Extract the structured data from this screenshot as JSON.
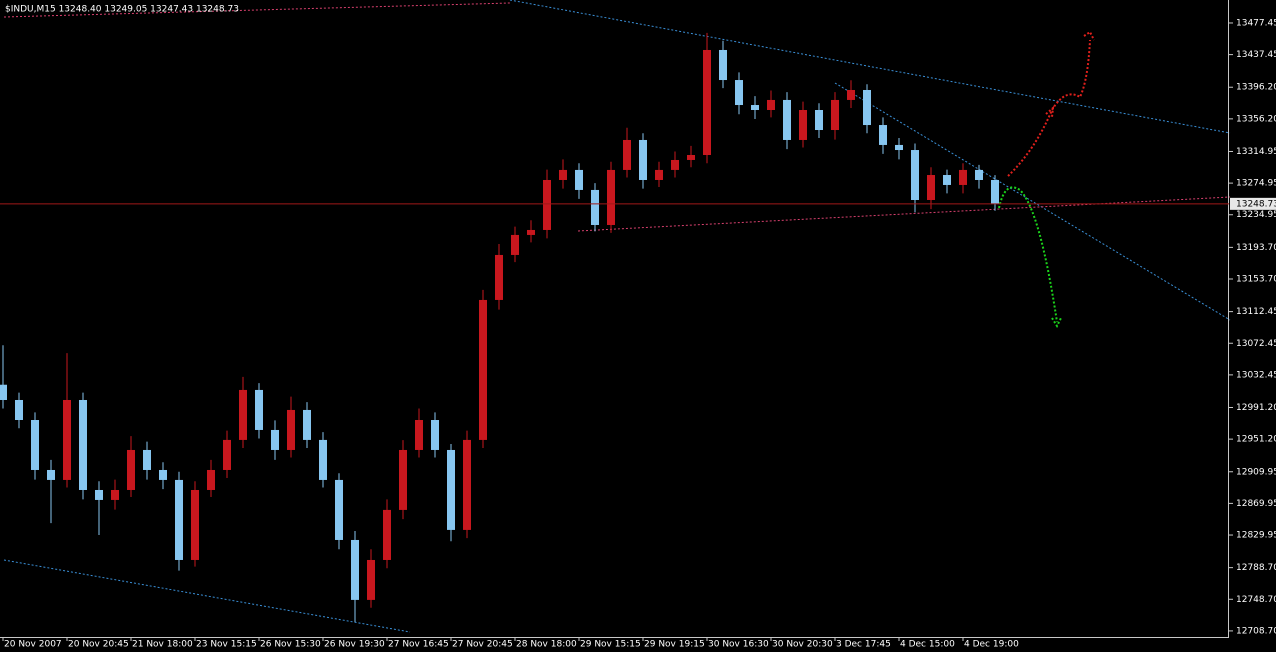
{
  "chart_data": {
    "type": "candlestick",
    "title": "$INDU,M15  13248.40 13249.05 13247.43 13248.73",
    "categories": [
      "20 Nov 2007",
      null,
      null,
      null,
      "20 Nov 20:45",
      null,
      null,
      null,
      "21 Nov 18:00",
      null,
      null,
      null,
      "23 Nov 15:15",
      null,
      null,
      null,
      "26 Nov 15:30",
      null,
      null,
      null,
      "26 Nov 19:30",
      null,
      null,
      null,
      "27 Nov 16:45",
      null,
      null,
      null,
      "27 Nov 20:45",
      null,
      null,
      null,
      "28 Nov 18:00",
      null,
      null,
      null,
      "29 Nov 15:15",
      null,
      null,
      null,
      "29 Nov 19:15",
      null,
      null,
      null,
      "30 Nov 16:30",
      null,
      null,
      null,
      "30 Nov 20:30",
      null,
      null,
      null,
      "3 Dec 17:45",
      null,
      null,
      null,
      "4 Dec 15:00",
      null,
      null,
      null,
      "4 Dec 19:00",
      null,
      null
    ],
    "open": [
      13020,
      13000.7,
      12975.4,
      12912.2,
      12899.6,
      13000.7,
      12886.9,
      12874.3,
      12886.9,
      12937.5,
      12912.2,
      12899.6,
      12798.4,
      12886.9,
      12912.2,
      12950.2,
      13013.4,
      12962.8,
      12937.5,
      12988.1,
      12950.2,
      12899.6,
      12823.7,
      12747.9,
      12798.4,
      12861.7,
      12937.5,
      12975.4,
      12937.5,
      12836.4,
      12950.2,
      13127.2,
      13184.1,
      13209.4,
      13215.7,
      13278.9,
      13291.6,
      13266.3,
      13222.0,
      13291.6,
      13329.5,
      13278.9,
      13291.6,
      13304.2,
      13310.5,
      13443.3,
      13405.3,
      13373.7,
      13367.4,
      13380.1,
      13329.5,
      13367.4,
      13342.1,
      13380.1,
      13392.7,
      13348.4,
      13323.2,
      13316.8,
      13253.6,
      13285.2,
      13272.6,
      13291.6,
      13278.9
    ],
    "high": [
      13070,
      13010,
      12985,
      12925,
      13060,
      13010,
      12898,
      12900,
      12955,
      12948,
      12922,
      12910,
      12898,
      12925,
      12962,
      13030,
      13022,
      12975,
      13005,
      12998,
      12960,
      12908,
      12835,
      12812,
      12875,
      12950,
      12990,
      12985,
      12945,
      12962,
      13140,
      13198,
      13220,
      13228,
      13292,
      13305,
      13300,
      13275,
      13302,
      13345,
      13338,
      13302,
      13315,
      13322,
      13465,
      13455,
      13415,
      13385,
      13392,
      13390,
      13378,
      13376,
      13390,
      13405,
      13400,
      13358,
      13332,
      13325,
      13295,
      13292,
      13300,
      13298,
      13285
    ],
    "low": [
      12990,
      12965,
      12900,
      12845,
      12890,
      12875,
      12830,
      12862,
      12878,
      12900,
      12888,
      12785,
      12790,
      12878,
      12902,
      12940,
      12952,
      12925,
      12928,
      12940,
      12890,
      12812,
      12720,
      12738,
      12788,
      12850,
      12928,
      12928,
      12822,
      12826,
      12940,
      13115,
      13175,
      13200,
      13205,
      13268,
      13255,
      13214,
      13212,
      13282,
      13268,
      13270,
      13282,
      13295,
      13300,
      13395,
      13362,
      13356,
      13358,
      13318,
      13320,
      13332,
      13330,
      13370,
      13338,
      13312,
      13305,
      13238,
      13242,
      13262,
      13262,
      13268,
      13240
    ],
    "close": [
      13000.7,
      12975.4,
      12912.2,
      12899.6,
      13000.7,
      12886.9,
      12874.3,
      12886.9,
      12937.5,
      12912.2,
      12899.6,
      12798.4,
      12886.9,
      12912.2,
      12950.2,
      13013.4,
      12962.8,
      12937.5,
      12988.1,
      12950.2,
      12899.6,
      12823.7,
      12747.9,
      12798.4,
      12861.7,
      12937.5,
      12975.4,
      12937.5,
      12836.4,
      12950.2,
      13127.2,
      13184.1,
      13209.4,
      13215.7,
      13278.9,
      13291.6,
      13266.3,
      13222.0,
      13291.6,
      13329.5,
      13278.9,
      13291.6,
      13304.2,
      13310.5,
      13443.3,
      13405.3,
      13373.7,
      13367.4,
      13380.1,
      13329.5,
      13367.4,
      13342.1,
      13380.1,
      13392.7,
      13348.4,
      13323.2,
      13316.8,
      13253.6,
      13285.2,
      13272.6,
      13291.6,
      13278.9,
      13248.73
    ],
    "up_color": "#c8171e",
    "down_color": "#87c6f0",
    "ylim": [
      12701,
      13506.5
    ],
    "yticks": [
      13477.45,
      13437.45,
      {
        "value": 13396.2,
        "label": "13396.20"
      },
      {
        "value": 13356.2,
        "label": "13356.20"
      },
      13314.95,
      13274.95,
      13234.95,
      {
        "value": 13193.7,
        "label": "13193.70"
      },
      {
        "value": 13153.7,
        "label": "13153.70"
      },
      13112.45,
      13072.45,
      13032.45,
      {
        "value": 12991.2,
        "label": "12991.20"
      },
      {
        "value": 12951.2,
        "label": "12951.20"
      },
      12909.95,
      12869.95,
      12829.95,
      {
        "value": 12788.7,
        "label": "12788.70"
      },
      {
        "value": 12748.7,
        "label": "12748.70"
      },
      {
        "value": 12708.7,
        "label": "12708.70"
      }
    ]
  }
}
